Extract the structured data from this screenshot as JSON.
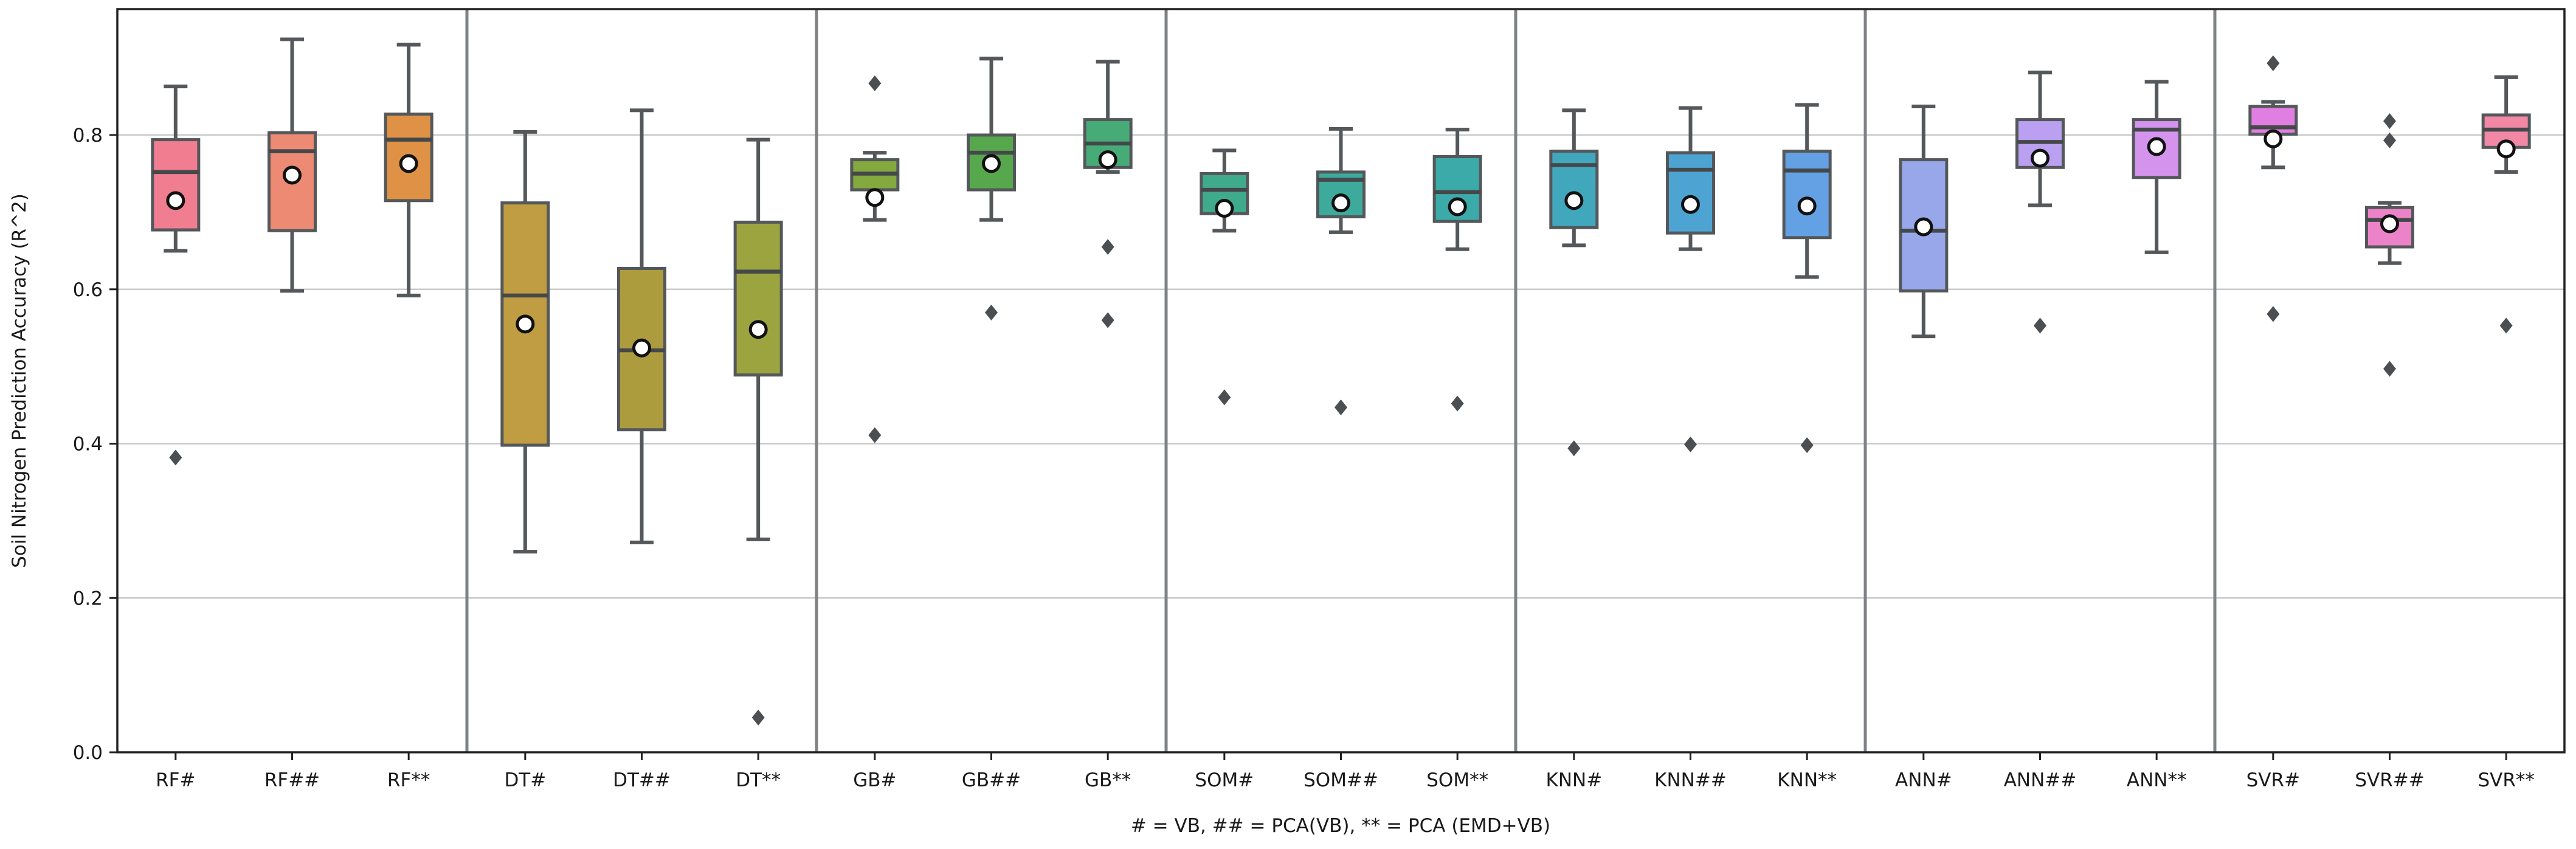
{
  "chart_data": {
    "type": "boxplot",
    "title": "",
    "ylabel": "Soil Nitrogen Prediction Accuracy (R^2)",
    "xlabel": "# = VB, ## = PCA(VB), ** = PCA (EMD+VB)",
    "ylim": [
      0.0,
      0.963
    ],
    "yticks": [
      "0.0",
      "0.2",
      "0.4",
      "0.6",
      "0.8"
    ],
    "grid": "horizontal",
    "legend": "none",
    "groups": [
      "RF",
      "DT",
      "GB",
      "SOM",
      "KNN",
      "ANN",
      "SVR"
    ],
    "group_size": 3,
    "categories": [
      "RF#",
      "RF##",
      "RF**",
      "DT#",
      "DT##",
      "DT**",
      "GB#",
      "GB##",
      "GB**",
      "SOM#",
      "SOM##",
      "SOM**",
      "KNN#",
      "KNN##",
      "KNN**",
      "ANN#",
      "ANN##",
      "ANN**",
      "SVR#",
      "SVR##",
      "SVR**"
    ],
    "boxes": [
      {
        "label": "RF#",
        "color": "#f17d90",
        "whislo": 0.65,
        "q1": 0.677,
        "med": 0.752,
        "q3": 0.794,
        "whishi": 0.863,
        "mean": 0.715,
        "fliers": [
          0.382
        ]
      },
      {
        "label": "RF##",
        "color": "#ec8a74",
        "whislo": 0.598,
        "q1": 0.676,
        "med": 0.779,
        "q3": 0.803,
        "whishi": 0.924,
        "mean": 0.748,
        "fliers": []
      },
      {
        "label": "RF**",
        "color": "#df9245",
        "whislo": 0.592,
        "q1": 0.715,
        "med": 0.794,
        "q3": 0.827,
        "whishi": 0.917,
        "mean": 0.763,
        "fliers": []
      },
      {
        "label": "DT#",
        "color": "#c09c42",
        "whislo": 0.26,
        "q1": 0.398,
        "med": 0.592,
        "q3": 0.712,
        "whishi": 0.804,
        "mean": 0.555,
        "fliers": []
      },
      {
        "label": "DT##",
        "color": "#ad9c3e",
        "whislo": 0.272,
        "q1": 0.418,
        "med": 0.521,
        "q3": 0.627,
        "whishi": 0.832,
        "mean": 0.524,
        "fliers": []
      },
      {
        "label": "DT**",
        "color": "#9ba43e",
        "whislo": 0.276,
        "q1": 0.489,
        "med": 0.623,
        "q3": 0.687,
        "whishi": 0.794,
        "mean": 0.548,
        "fliers": [
          0.045
        ]
      },
      {
        "label": "GB#",
        "color": "#83a93f",
        "whislo": 0.69,
        "q1": 0.729,
        "med": 0.75,
        "q3": 0.768,
        "whishi": 0.777,
        "mean": 0.719,
        "fliers": [
          0.867,
          0.411
        ]
      },
      {
        "label": "GB##",
        "color": "#57a84d",
        "whislo": 0.69,
        "q1": 0.729,
        "med": 0.777,
        "q3": 0.8,
        "whishi": 0.899,
        "mean": 0.763,
        "fliers": [
          0.57
        ]
      },
      {
        "label": "GB**",
        "color": "#47ab78",
        "whislo": 0.752,
        "q1": 0.758,
        "med": 0.789,
        "q3": 0.82,
        "whishi": 0.895,
        "mean": 0.768,
        "fliers": [
          0.655,
          0.56
        ]
      },
      {
        "label": "SOM#",
        "color": "#40ab8c",
        "whislo": 0.676,
        "q1": 0.698,
        "med": 0.729,
        "q3": 0.75,
        "whishi": 0.78,
        "mean": 0.705,
        "fliers": [
          0.46
        ]
      },
      {
        "label": "SOM##",
        "color": "#3daa9b",
        "whislo": 0.674,
        "q1": 0.694,
        "med": 0.742,
        "q3": 0.752,
        "whishi": 0.808,
        "mean": 0.712,
        "fliers": [
          0.447
        ]
      },
      {
        "label": "SOM**",
        "color": "#3caaa8",
        "whislo": 0.652,
        "q1": 0.688,
        "med": 0.726,
        "q3": 0.772,
        "whishi": 0.807,
        "mean": 0.707,
        "fliers": [
          0.452
        ]
      },
      {
        "label": "KNN#",
        "color": "#41a7bd",
        "whislo": 0.657,
        "q1": 0.68,
        "med": 0.761,
        "q3": 0.779,
        "whishi": 0.832,
        "mean": 0.715,
        "fliers": [
          0.394
        ]
      },
      {
        "label": "KNN##",
        "color": "#4da4d2",
        "whislo": 0.652,
        "q1": 0.673,
        "med": 0.755,
        "q3": 0.777,
        "whishi": 0.835,
        "mean": 0.71,
        "fliers": [
          0.399
        ]
      },
      {
        "label": "KNN**",
        "color": "#64a1e4",
        "whislo": 0.616,
        "q1": 0.667,
        "med": 0.754,
        "q3": 0.779,
        "whishi": 0.839,
        "mean": 0.708,
        "fliers": [
          0.398
        ]
      },
      {
        "label": "ANN#",
        "color": "#98a7ea",
        "whislo": 0.539,
        "q1": 0.598,
        "med": 0.676,
        "q3": 0.768,
        "whishi": 0.837,
        "mean": 0.681,
        "fliers": []
      },
      {
        "label": "ANN##",
        "color": "#bb9ff0",
        "whislo": 0.709,
        "q1": 0.758,
        "med": 0.791,
        "q3": 0.82,
        "whishi": 0.881,
        "mean": 0.77,
        "fliers": [
          0.553
        ]
      },
      {
        "label": "ANN**",
        "color": "#d494ee",
        "whislo": 0.648,
        "q1": 0.745,
        "med": 0.807,
        "q3": 0.82,
        "whishi": 0.869,
        "mean": 0.785,
        "fliers": []
      },
      {
        "label": "SVR#",
        "color": "#e07ee1",
        "whislo": 0.758,
        "q1": 0.801,
        "med": 0.81,
        "q3": 0.837,
        "whishi": 0.843,
        "mean": 0.795,
        "fliers": [
          0.893,
          0.568
        ]
      },
      {
        "label": "SVR##",
        "color": "#ec83c8",
        "whislo": 0.634,
        "q1": 0.655,
        "med": 0.69,
        "q3": 0.706,
        "whishi": 0.712,
        "mean": 0.685,
        "fliers": [
          0.818,
          0.793,
          0.497
        ]
      },
      {
        "label": "SVR**",
        "color": "#f287a6",
        "whislo": 0.752,
        "q1": 0.784,
        "med": 0.807,
        "q3": 0.826,
        "whishi": 0.875,
        "mean": 0.782,
        "fliers": [
          0.553
        ]
      }
    ]
  },
  "style": {
    "background": "#ffffff",
    "grid_color": "#c9c9c9",
    "spine_color": "#202020",
    "separator_color": "#7e8285",
    "box_edge_color": "#54585b",
    "whisker_color": "#54585b",
    "median_color": "#44484a",
    "flier_color": "#4b4f52",
    "mean_fill": "#ffffff",
    "mean_edge": "#111111",
    "text_color": "#1a1a1a"
  }
}
